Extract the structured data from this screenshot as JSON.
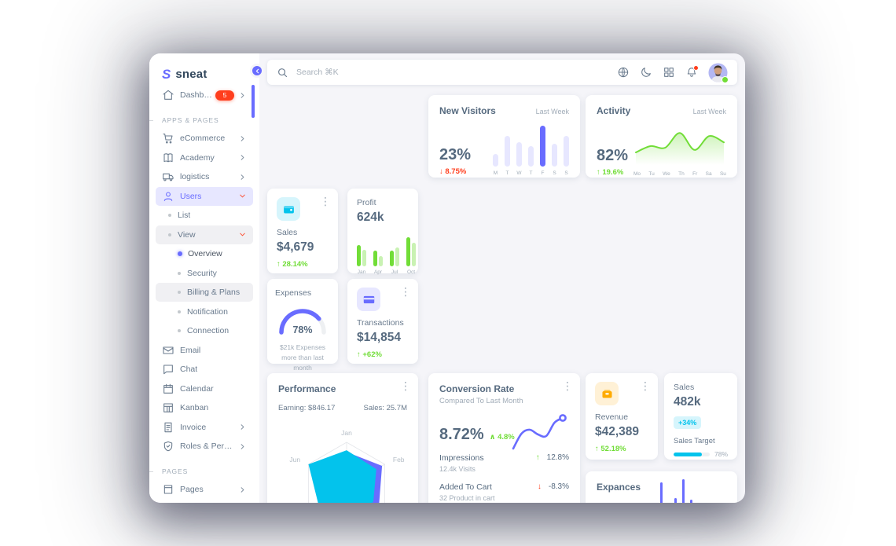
{
  "colors": {
    "primary": "#696cff",
    "success": "#71dd37",
    "danger": "#ff3e1d",
    "info": "#03c3ec",
    "warning": "#ffab00",
    "heading": "#566a7f",
    "body": "#697a8d",
    "muted": "#a1acb8",
    "bg": "#f5f5f9",
    "bar_track": "#e7e7ff",
    "success_light": "rgba(113,221,55,0.38)"
  },
  "sidebar": {
    "logo_text": "sneat",
    "items": [
      {
        "type": "item",
        "label": "Dashboards",
        "icon": "home",
        "badge": "5",
        "chevron": "right"
      },
      {
        "type": "header",
        "label": "APPS & PAGES"
      },
      {
        "type": "item",
        "label": "eCommerce",
        "icon": "cart",
        "chevron": "right"
      },
      {
        "type": "item",
        "label": "Academy",
        "icon": "book",
        "chevron": "right"
      },
      {
        "type": "item",
        "label": "logistics",
        "icon": "truck",
        "chevron": "right"
      },
      {
        "type": "item",
        "label": "Users",
        "icon": "user",
        "chevron": "down",
        "state": "active"
      },
      {
        "type": "sub",
        "label": "List",
        "level": 1
      },
      {
        "type": "sub",
        "label": "View",
        "level": 1,
        "chevron": "down",
        "state": "open"
      },
      {
        "type": "sub",
        "label": "Overview",
        "level": 2,
        "state": "current"
      },
      {
        "type": "sub",
        "label": "Security",
        "level": 2
      },
      {
        "type": "sub",
        "label": "Billing & Plans",
        "level": 2,
        "state": "hovered"
      },
      {
        "type": "sub",
        "label": "Notification",
        "level": 2
      },
      {
        "type": "sub",
        "label": "Connection",
        "level": 2
      },
      {
        "type": "item",
        "label": "Email",
        "icon": "mail"
      },
      {
        "type": "item",
        "label": "Chat",
        "icon": "chat"
      },
      {
        "type": "item",
        "label": "Calendar",
        "icon": "calendar"
      },
      {
        "type": "item",
        "label": "Kanban",
        "icon": "kanban"
      },
      {
        "type": "item",
        "label": "Invoice",
        "icon": "invoice",
        "chevron": "right"
      },
      {
        "type": "item",
        "label": "Roles & Permiss...",
        "icon": "shield",
        "chevron": "right"
      },
      {
        "type": "header",
        "label": "PAGES"
      },
      {
        "type": "item",
        "label": "Pages",
        "icon": "page",
        "chevron": "right"
      }
    ]
  },
  "topbar": {
    "search_placeholder": "Search ⌘K",
    "icons": [
      "globe",
      "moon",
      "grid",
      "bell"
    ],
    "bell_has_badge": true,
    "avatar_status": "online"
  },
  "cards": {
    "new_visitors": {
      "title": "New Visitors",
      "period": "Last Week",
      "value": "23%",
      "delta": "↓ 8.75%",
      "delta_dir": "down",
      "chart": {
        "type": "bar",
        "categories": [
          "M",
          "T",
          "W",
          "T",
          "F",
          "S",
          "S"
        ],
        "values": [
          30,
          75,
          60,
          50,
          100,
          55,
          75
        ],
        "highlight_index": 4
      }
    },
    "activity": {
      "title": "Activity",
      "period": "Last Week",
      "value": "82%",
      "delta": "↑ 19.6%",
      "delta_dir": "up",
      "chart": {
        "type": "area",
        "categories": [
          "Mo",
          "Tu",
          "We",
          "Th",
          "Fr",
          "Sa",
          "Su"
        ],
        "values": [
          30,
          50,
          45,
          92,
          38,
          82,
          62
        ]
      }
    },
    "sales": {
      "label": "Sales",
      "value": "$4,679",
      "delta": "↑ 28.14%",
      "delta_dir": "up",
      "icon": "wallet-cyan"
    },
    "profit": {
      "label": "Profit",
      "value": "624k",
      "chart": {
        "type": "bar",
        "categories": [
          "Jan",
          "Apr",
          "Jul",
          "Oct"
        ],
        "series": [
          {
            "name": "current",
            "values": [
              62,
              45,
              45,
              85
            ]
          },
          {
            "name": "previous",
            "values": [
              48,
              30,
              55,
              68
            ]
          }
        ]
      }
    },
    "expenses": {
      "title": "Expenses",
      "percent": 78,
      "percent_text": "78%",
      "note_line1": "$21k Expenses",
      "note_line2": "more than last month"
    },
    "transactions": {
      "label": "Transactions",
      "value": "$14,854",
      "delta": "↑ +62%",
      "delta_dir": "up",
      "icon": "card-purple"
    },
    "performance": {
      "title": "Performance",
      "earning": "Earning: $846.17",
      "sales": "Sales: 25.7M",
      "radar": {
        "type": "radar",
        "labels": [
          "Jan",
          "Feb",
          "",
          "",
          "",
          "Jun"
        ],
        "series": [
          {
            "name": "income",
            "color": "#696cff",
            "values": [
              0.78,
              0.93,
              0.85,
              0.6,
              0.55,
              0.65
            ]
          },
          {
            "name": "earning",
            "color": "#03c3ec",
            "values": [
              0.82,
              0.78,
              0.7,
              0.85,
              0.75,
              1.0
            ]
          }
        ]
      }
    },
    "conversion": {
      "title": "Conversion Rate",
      "subtitle": "Compared To Last Month",
      "value": "8.72%",
      "delta": "∧ 4.8%",
      "delta_dir": "up",
      "spark": [
        88,
        50,
        40,
        52,
        56,
        22,
        10
      ],
      "rows": [
        {
          "label": "Impressions",
          "sub": "12.4k Visits",
          "arrow": "↑",
          "dir": "up",
          "delta": "12.8%"
        },
        {
          "label": "Added To Cart",
          "sub": "32 Product in cart",
          "arrow": "↓",
          "dir": "down",
          "delta": "-8.3%"
        }
      ]
    },
    "revenue": {
      "label": "Revenue",
      "value": "$42,389",
      "delta": "↑ 52.18%",
      "delta_dir": "up",
      "icon": "wallet-orange"
    },
    "sales_target": {
      "label": "Sales",
      "value": "482k",
      "badge": "+34%",
      "target_label": "Sales Target",
      "target_percent": 78,
      "target_text": "78%"
    },
    "expances": {
      "title": "Expances",
      "bars": [
        34,
        14,
        38,
        12
      ]
    }
  }
}
